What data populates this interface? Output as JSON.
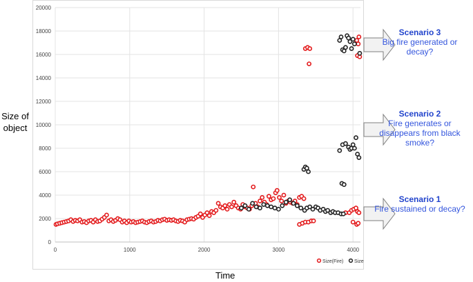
{
  "chart_data": {
    "type": "scatter",
    "xlabel": "Time",
    "ylabel": "Size of object",
    "xlim": [
      0,
      4100
    ],
    "ylim": [
      0,
      20000
    ],
    "x_ticks": [
      0,
      1000,
      2000,
      3000,
      4000
    ],
    "y_ticks": [
      0,
      2000,
      4000,
      6000,
      8000,
      10000,
      12000,
      14000,
      16000,
      18000,
      20000
    ],
    "grid": true,
    "legend_position": "bottom-right",
    "series": [
      {
        "name": "Size(Fire)",
        "color": "#e31a1c",
        "marker": "open-circle",
        "points": [
          [
            10,
            1500
          ],
          [
            30,
            1550
          ],
          [
            60,
            1600
          ],
          [
            90,
            1650
          ],
          [
            120,
            1700
          ],
          [
            150,
            1750
          ],
          [
            180,
            1800
          ],
          [
            210,
            1900
          ],
          [
            240,
            1750
          ],
          [
            270,
            1850
          ],
          [
            300,
            1800
          ],
          [
            330,
            1900
          ],
          [
            360,
            1700
          ],
          [
            390,
            1750
          ],
          [
            420,
            1650
          ],
          [
            450,
            1800
          ],
          [
            480,
            1850
          ],
          [
            510,
            1700
          ],
          [
            540,
            1900
          ],
          [
            570,
            1750
          ],
          [
            600,
            1800
          ],
          [
            630,
            1950
          ],
          [
            660,
            2100
          ],
          [
            690,
            2300
          ],
          [
            720,
            1800
          ],
          [
            750,
            1900
          ],
          [
            780,
            1750
          ],
          [
            810,
            1850
          ],
          [
            840,
            2000
          ],
          [
            870,
            1900
          ],
          [
            900,
            1700
          ],
          [
            930,
            1800
          ],
          [
            960,
            1650
          ],
          [
            990,
            1800
          ],
          [
            1020,
            1700
          ],
          [
            1050,
            1750
          ],
          [
            1080,
            1650
          ],
          [
            1110,
            1700
          ],
          [
            1140,
            1750
          ],
          [
            1170,
            1800
          ],
          [
            1200,
            1700
          ],
          [
            1230,
            1650
          ],
          [
            1260,
            1750
          ],
          [
            1290,
            1800
          ],
          [
            1320,
            1700
          ],
          [
            1350,
            1750
          ],
          [
            1380,
            1850
          ],
          [
            1410,
            1800
          ],
          [
            1440,
            1900
          ],
          [
            1470,
            1950
          ],
          [
            1500,
            1850
          ],
          [
            1530,
            1900
          ],
          [
            1560,
            1850
          ],
          [
            1590,
            1900
          ],
          [
            1620,
            1800
          ],
          [
            1650,
            1750
          ],
          [
            1680,
            1850
          ],
          [
            1710,
            1800
          ],
          [
            1740,
            1700
          ],
          [
            1770,
            1900
          ],
          [
            1800,
            1950
          ],
          [
            1830,
            2000
          ],
          [
            1860,
            1950
          ],
          [
            1890,
            2100
          ],
          [
            1920,
            2200
          ],
          [
            1950,
            2400
          ],
          [
            1980,
            2100
          ],
          [
            2010,
            2300
          ],
          [
            2040,
            2500
          ],
          [
            2070,
            2250
          ],
          [
            2100,
            2600
          ],
          [
            2130,
            2500
          ],
          [
            2160,
            2700
          ],
          [
            2190,
            3300
          ],
          [
            2220,
            3000
          ],
          [
            2250,
            2900
          ],
          [
            2280,
            3100
          ],
          [
            2310,
            2800
          ],
          [
            2340,
            3200
          ],
          [
            2370,
            3000
          ],
          [
            2400,
            3400
          ],
          [
            2430,
            3100
          ],
          [
            2460,
            2900
          ],
          [
            2490,
            2800
          ],
          [
            2520,
            3200
          ],
          [
            2550,
            3000
          ],
          [
            2580,
            2900
          ],
          [
            2610,
            2800
          ],
          [
            2640,
            3100
          ],
          [
            2660,
            4700
          ],
          [
            2690,
            3300
          ],
          [
            2720,
            3000
          ],
          [
            2750,
            3500
          ],
          [
            2780,
            3800
          ],
          [
            2810,
            3400
          ],
          [
            2840,
            3200
          ],
          [
            2870,
            3900
          ],
          [
            2900,
            3600
          ],
          [
            2930,
            3700
          ],
          [
            2960,
            4200
          ],
          [
            2980,
            4400
          ],
          [
            3010,
            3800
          ],
          [
            3040,
            3500
          ],
          [
            3070,
            4000
          ],
          [
            3100,
            3300
          ],
          [
            3130,
            3500
          ],
          [
            3160,
            3400
          ],
          [
            3190,
            3300
          ],
          [
            3220,
            3500
          ],
          [
            3250,
            3200
          ],
          [
            3280,
            3800
          ],
          [
            3310,
            3900
          ],
          [
            3340,
            3700
          ],
          [
            3360,
            16500
          ],
          [
            3390,
            16600
          ],
          [
            3410,
            15200
          ],
          [
            3420,
            16500
          ],
          [
            3280,
            1500
          ],
          [
            3320,
            1600
          ],
          [
            3360,
            1700
          ],
          [
            3400,
            1700
          ],
          [
            3440,
            1800
          ],
          [
            3470,
            1800
          ],
          [
            3900,
            2500
          ],
          [
            3950,
            2500
          ],
          [
            3980,
            2700
          ],
          [
            4010,
            2800
          ],
          [
            4040,
            2900
          ],
          [
            4060,
            2600
          ],
          [
            4080,
            2500
          ],
          [
            4000,
            1700
          ],
          [
            4050,
            1500
          ],
          [
            4070,
            1600
          ],
          [
            4050,
            17200
          ],
          [
            4070,
            16900
          ],
          [
            4080,
            17500
          ],
          [
            4060,
            15900
          ],
          [
            4090,
            15800
          ]
        ]
      },
      {
        "name": "Size",
        "color": "#222222",
        "marker": "open-circle",
        "points": [
          [
            2500,
            2900
          ],
          [
            2550,
            3100
          ],
          [
            2600,
            2800
          ],
          [
            2650,
            3300
          ],
          [
            2700,
            3000
          ],
          [
            2750,
            2900
          ],
          [
            2800,
            3200
          ],
          [
            2850,
            3100
          ],
          [
            2900,
            3000
          ],
          [
            2950,
            2900
          ],
          [
            3000,
            2800
          ],
          [
            3050,
            3100
          ],
          [
            3100,
            3400
          ],
          [
            3150,
            3600
          ],
          [
            3200,
            3300
          ],
          [
            3250,
            3100
          ],
          [
            3300,
            2900
          ],
          [
            3350,
            2700
          ],
          [
            3380,
            2900
          ],
          [
            3420,
            3000
          ],
          [
            3460,
            2800
          ],
          [
            3500,
            3000
          ],
          [
            3530,
            2900
          ],
          [
            3560,
            2700
          ],
          [
            3600,
            2800
          ],
          [
            3630,
            2600
          ],
          [
            3660,
            2700
          ],
          [
            3700,
            2500
          ],
          [
            3730,
            2600
          ],
          [
            3760,
            2500
          ],
          [
            3800,
            2500
          ],
          [
            3840,
            2400
          ],
          [
            3870,
            2400
          ],
          [
            3340,
            6200
          ],
          [
            3360,
            6400
          ],
          [
            3380,
            6300
          ],
          [
            3400,
            6000
          ],
          [
            3850,
            5000
          ],
          [
            3880,
            4900
          ],
          [
            3820,
            7800
          ],
          [
            3860,
            8300
          ],
          [
            3900,
            8400
          ],
          [
            3940,
            8100
          ],
          [
            3960,
            7900
          ],
          [
            3980,
            8000
          ],
          [
            4000,
            8300
          ],
          [
            4020,
            8000
          ],
          [
            4040,
            8900
          ],
          [
            4060,
            7500
          ],
          [
            4080,
            7200
          ],
          [
            3820,
            17200
          ],
          [
            3840,
            17500
          ],
          [
            3860,
            16400
          ],
          [
            3880,
            16300
          ],
          [
            3900,
            16600
          ],
          [
            3920,
            17600
          ],
          [
            3940,
            17400
          ],
          [
            3960,
            17100
          ],
          [
            3980,
            16500
          ],
          [
            4000,
            17300
          ],
          [
            4020,
            16900
          ],
          [
            4090,
            16100
          ]
        ]
      }
    ]
  },
  "annotations": [
    {
      "title": "Scenario 3",
      "text": "Big fire generated or decay?"
    },
    {
      "title": "Scenario 2",
      "text": "Fire generates or disappears from black smoke?"
    },
    {
      "title": "Scenario 1",
      "text": "Fire sustained or decay?"
    }
  ],
  "labels": {
    "ylabel_line1": "Size of",
    "ylabel_line2": "object",
    "xlabel": "Time"
  }
}
